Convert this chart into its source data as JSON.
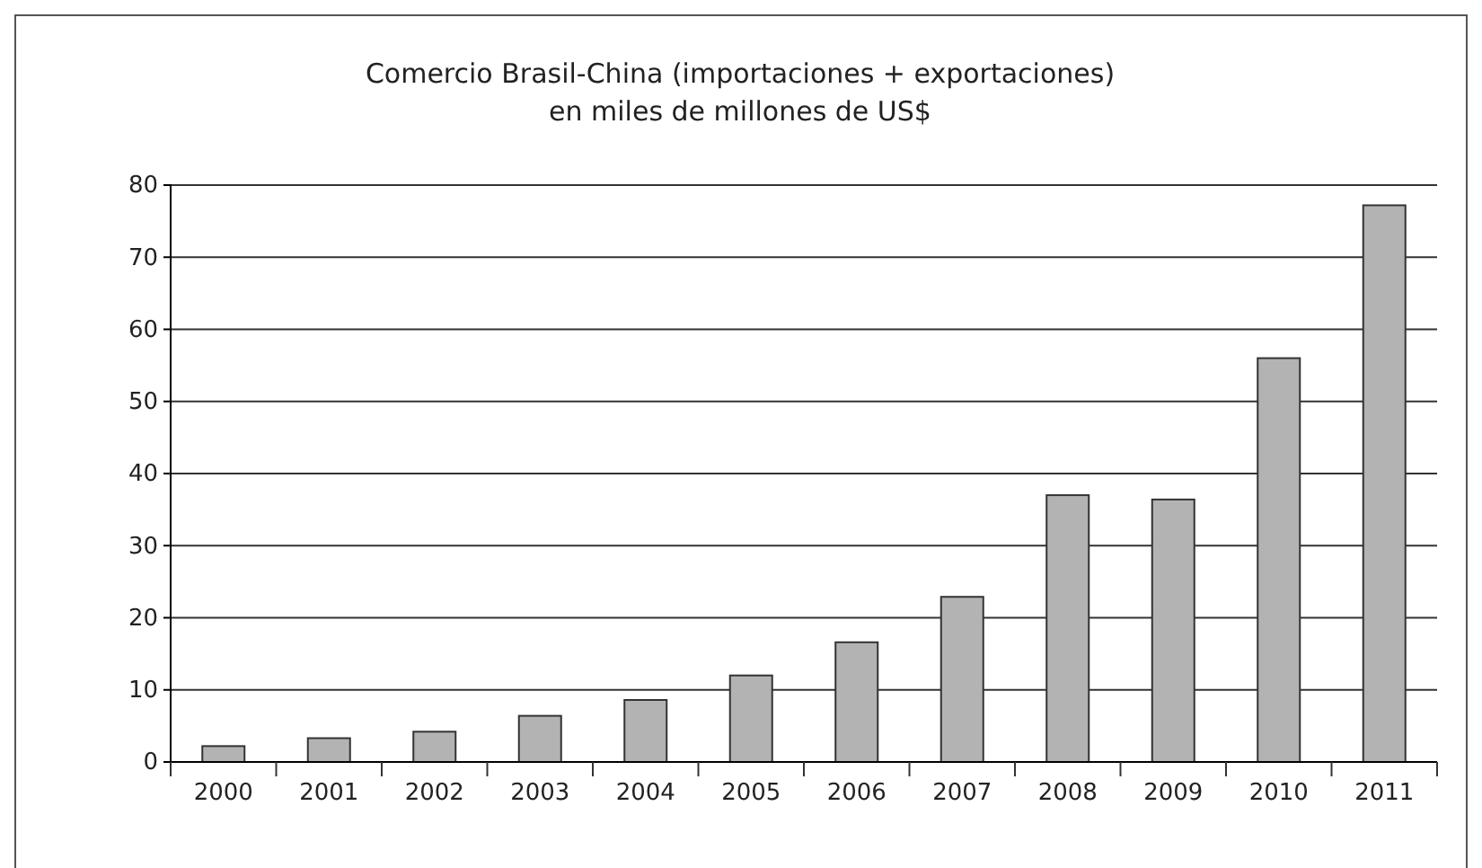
{
  "chart_data": {
    "type": "bar",
    "title": "Comercio Brasil-China (importaciones + exportaciones)\nen miles de millones de US$",
    "categories": [
      "2000",
      "2001",
      "2002",
      "2003",
      "2004",
      "2005",
      "2006",
      "2007",
      "2008",
      "2009",
      "2010",
      "2011"
    ],
    "values": [
      2.2,
      3.3,
      4.2,
      6.4,
      8.6,
      12.0,
      16.6,
      22.9,
      37.0,
      36.4,
      56.0,
      77.2
    ],
    "color": "#b3b3b3",
    "ylim": [
      0,
      80
    ],
    "yticks": [
      0,
      10,
      20,
      30,
      40,
      50,
      60,
      70,
      80
    ],
    "grid": "y"
  }
}
